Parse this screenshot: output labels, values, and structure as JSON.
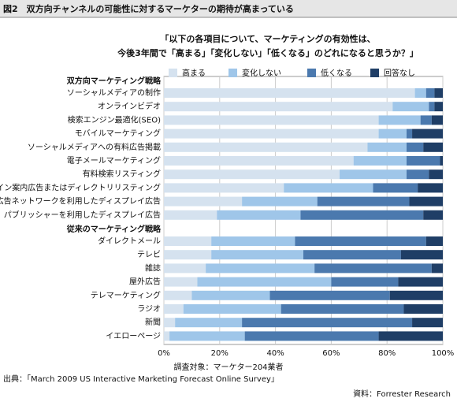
{
  "header": {
    "title": "図2　双方向チャンネルの可能性に対するマーケターの期待が高まっている"
  },
  "chart_data": {
    "type": "stacked-bar-horizontal",
    "subtitle": [
      "「以下の各項目について、マーケティングの有効性は、",
      "今後3年間で「高まる」「変化しない」「低くなる」のどれになると思うか？」"
    ],
    "groups": [
      {
        "name": "双方向マーケティング戦略",
        "categories": [
          "ソーシャルメディアの制作",
          "オンラインビデオ",
          "検索エンジン最適化(SEO)",
          "モバイルマーケティング",
          "ソーシャルメディアへの有料広告掲載",
          "電子メールマーケティング",
          "有料検索リスティング",
          "オンライン案内広告またはディレクトリリスティング",
          "広告ネットワークを利用したディスプレイ広告",
          "パブリッシャーを利用したディスプレイ広告"
        ]
      },
      {
        "name": "従来のマーケティング戦略",
        "categories": [
          "ダイレクトメール",
          "テレビ",
          "雑誌",
          "屋外広告",
          "テレマーケティング",
          "ラジオ",
          "新聞",
          "イエローページ"
        ]
      }
    ],
    "series": [
      {
        "name": "高まる",
        "color": "#d5e2ef",
        "values": [
          90,
          82,
          77,
          77,
          73,
          68,
          63,
          43,
          28,
          19,
          17,
          17,
          15,
          12,
          10,
          7,
          4,
          2
        ]
      },
      {
        "name": "変化しない",
        "color": "#9fc6e9",
        "values": [
          4,
          13,
          15,
          10,
          14,
          19,
          24,
          32,
          27,
          30,
          30,
          33,
          39,
          48,
          28,
          35,
          24,
          27
        ]
      },
      {
        "name": "低くなる",
        "color": "#4b79ae",
        "values": [
          3,
          2,
          4,
          2,
          6,
          12,
          8,
          16,
          33,
          44,
          47,
          35,
          42,
          24,
          43,
          44,
          61,
          48
        ]
      },
      {
        "name": "回答なし",
        "color": "#1f3e66",
        "values": [
          3,
          3,
          4,
          11,
          7,
          1,
          5,
          9,
          12,
          7,
          6,
          15,
          4,
          16,
          19,
          14,
          11,
          23
        ]
      }
    ],
    "xlim": [
      0,
      100
    ],
    "xticks": [
      {
        "value": 0,
        "label": "0%"
      },
      {
        "value": 20,
        "label": "20%"
      },
      {
        "value": 40,
        "label": "40%"
      },
      {
        "value": 60,
        "label": "60%"
      },
      {
        "value": 80,
        "label": "80%"
      },
      {
        "value": 100,
        "label": "100%"
      }
    ],
    "grid": true,
    "xlabel": "調査対象：マーケター204業者"
  },
  "footer": {
    "source": "出典：「March 2009 US Interactive Marketing Forecast Online Survey」",
    "credit": "資料：Forrester Research"
  }
}
